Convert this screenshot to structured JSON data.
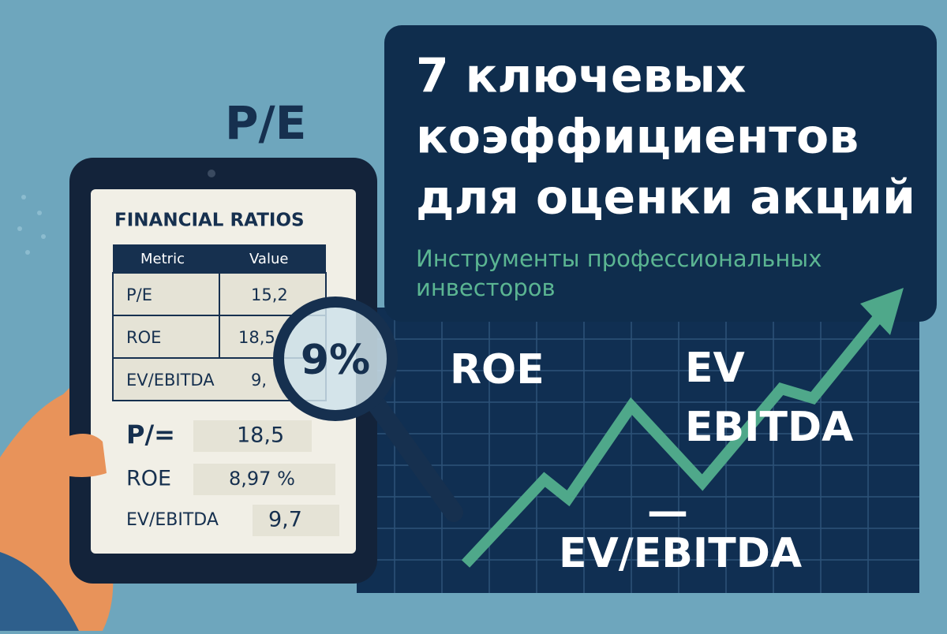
{
  "badge": "P/E",
  "header": {
    "title_lines": [
      "7 ключевых",
      "коэффициентов",
      "для оценки акций"
    ],
    "subtitle_lines": [
      "Инструменты профессиональных",
      "инвесторов"
    ]
  },
  "tablet": {
    "title": "FINANCIAL RATIOS",
    "table": {
      "columns": [
        "Metric",
        "Value"
      ],
      "rows": [
        [
          "P/E",
          "15,2"
        ],
        [
          "ROE",
          "18,5"
        ],
        [
          "EV/EBITDA",
          "9,"
        ]
      ]
    },
    "summary": {
      "rows": [
        [
          "P/=",
          "18,5"
        ],
        [
          "ROE",
          "8,97 %"
        ],
        [
          "EV/EBITDA",
          "9,7"
        ]
      ]
    }
  },
  "magnifier": "9%",
  "chart_labels": {
    "roe": "ROE",
    "ev_ebitda_lines": [
      "EV",
      "EBITDA"
    ],
    "dash": "—",
    "bottom": "EV/EBITDA"
  }
}
